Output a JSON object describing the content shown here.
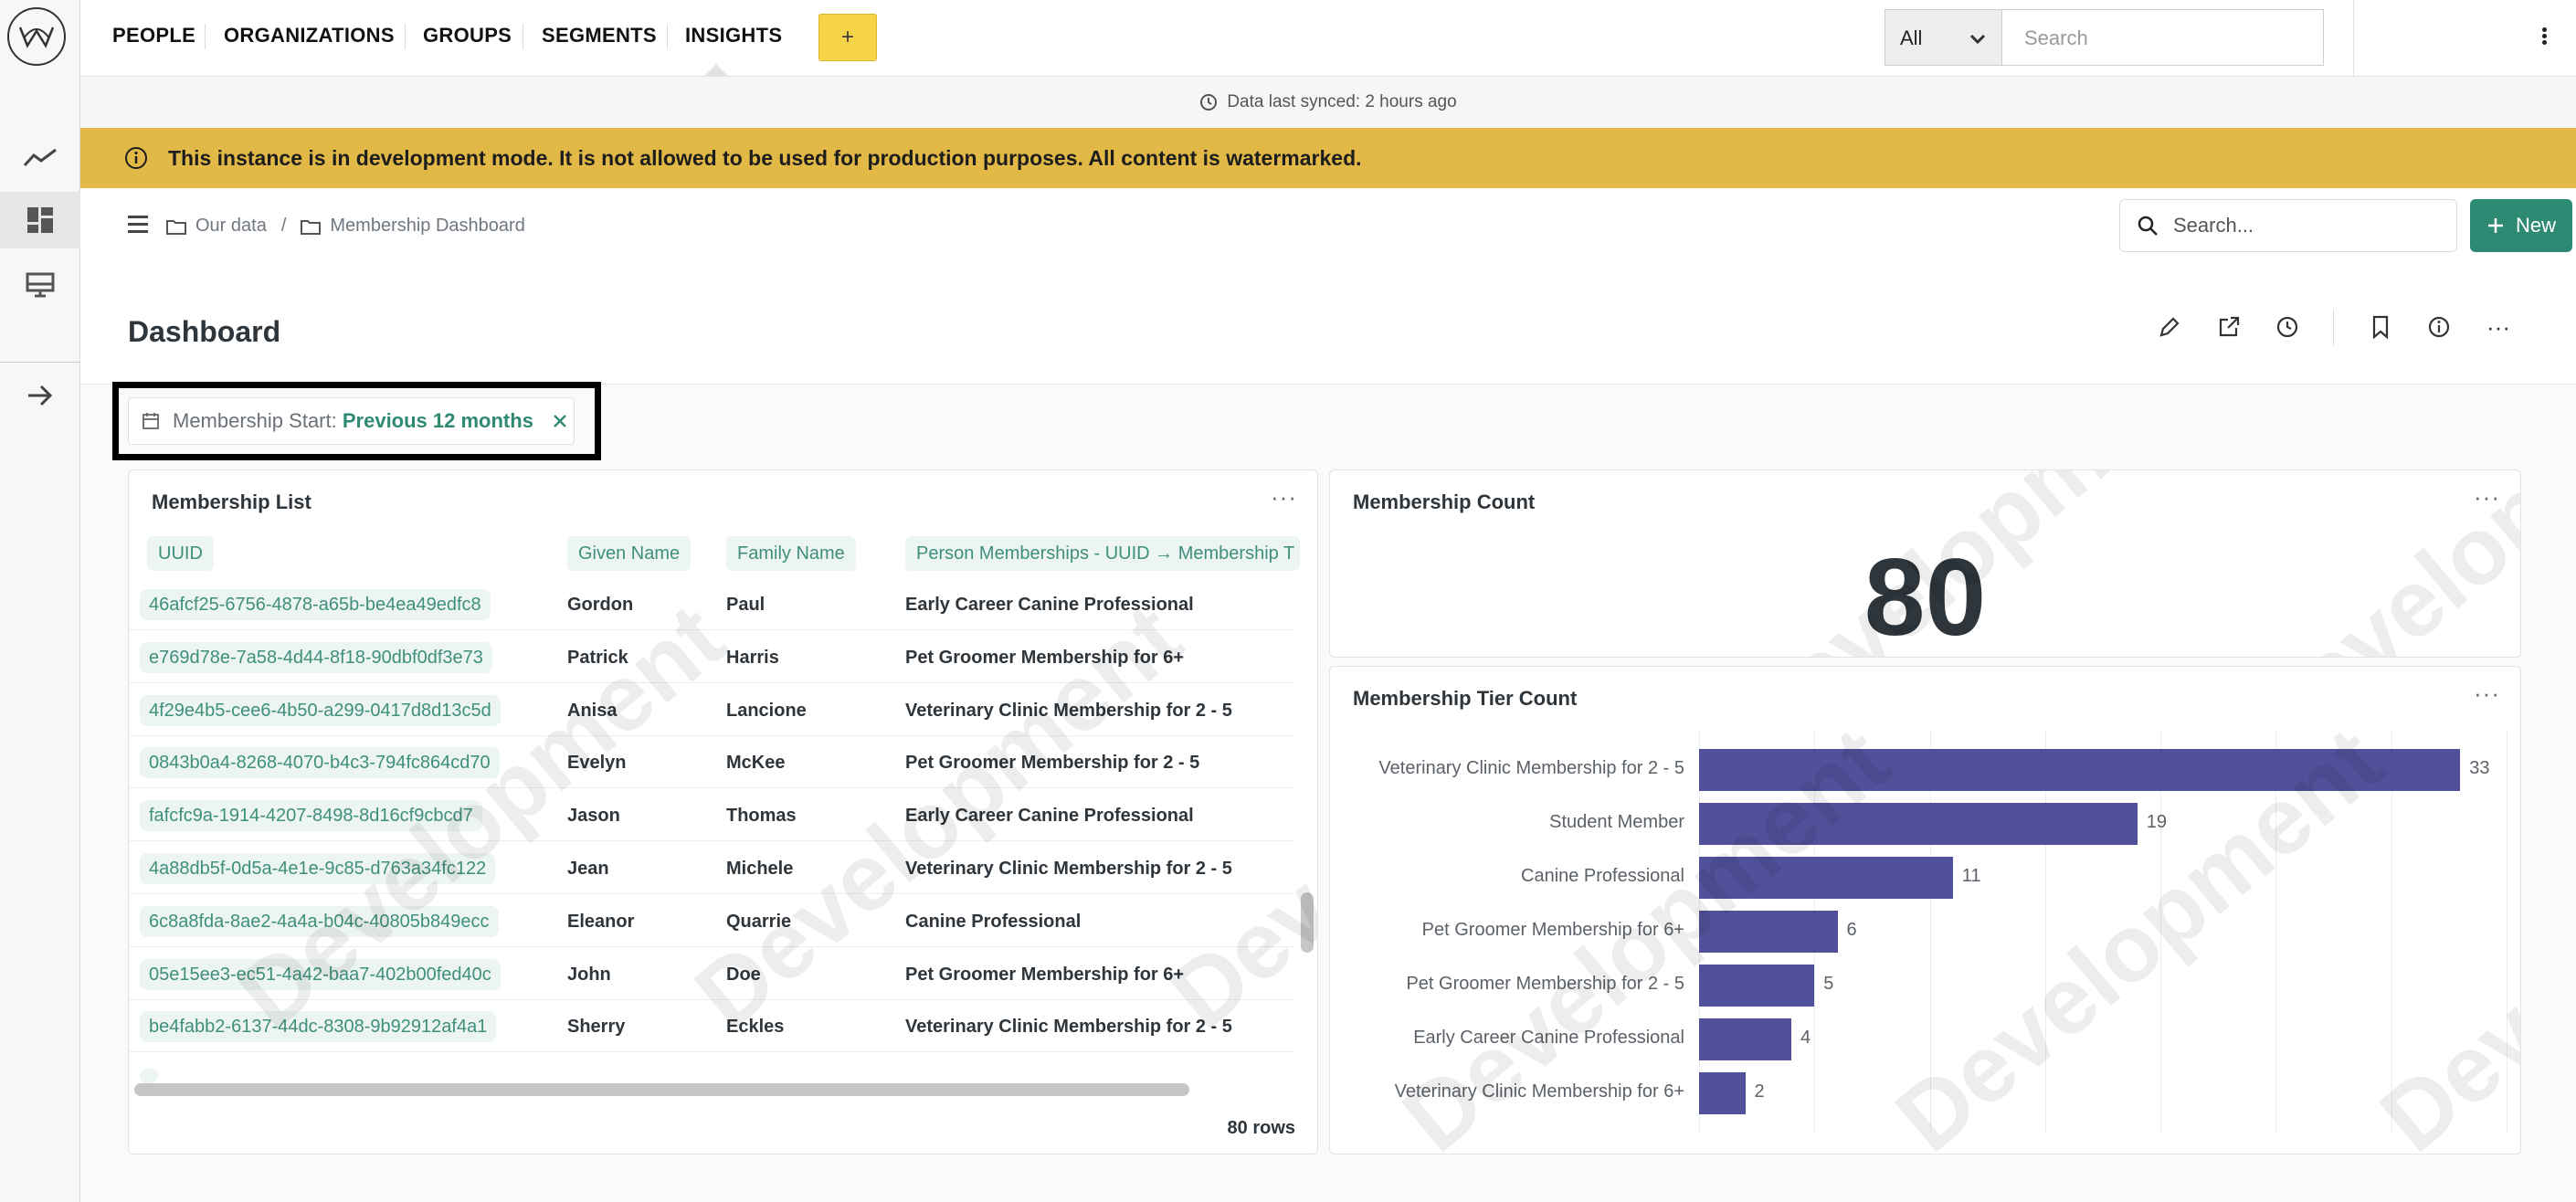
{
  "nav": {
    "items": [
      "PEOPLE",
      "ORGANIZATIONS",
      "GROUPS",
      "SEGMENTS",
      "INSIGHTS"
    ],
    "add_label": "+",
    "scope_value": "All",
    "search_placeholder": "Search"
  },
  "sync": {
    "text": "Data last synced: 2 hours ago"
  },
  "banner": {
    "text": "This instance is in development mode. It is not allowed to be used for production purposes. All content is watermarked.",
    "color": "#e2b947"
  },
  "breadcrumb": {
    "root": "Our data",
    "separator": "/",
    "current": "Membership Dashboard"
  },
  "toolbar": {
    "search_placeholder": "Search...",
    "new_label": "New"
  },
  "page": {
    "title": "Dashboard"
  },
  "filter": {
    "label": "Membership Start:",
    "value": "Previous 12 months"
  },
  "membership_list": {
    "title": "Membership List",
    "columns": [
      "UUID",
      "Given Name",
      "Family Name",
      "Person Memberships - UUID → Membership T"
    ],
    "rows": [
      [
        "46afcf25-6756-4878-a65b-be4ea49edfc8",
        "Gordon",
        "Paul",
        "Early Career Canine Professional"
      ],
      [
        "e769d78e-7a58-4d44-8f18-90dbf0df3e73",
        "Patrick",
        "Harris",
        "Pet Groomer Membership for 6+"
      ],
      [
        "4f29e4b5-cee6-4b50-a299-0417d8d13c5d",
        "Anisa",
        "Lancione",
        "Veterinary Clinic Membership for 2 - 5"
      ],
      [
        "0843b0a4-8268-4070-b4c3-794fc864cd70",
        "Evelyn",
        "McKee",
        "Pet Groomer Membership for 2 - 5"
      ],
      [
        "fafcfc9a-1914-4207-8498-8d16cf9cbcd7",
        "Jason",
        "Thomas",
        "Early Career Canine Professional"
      ],
      [
        "4a88db5f-0d5a-4e1e-9c85-d763a34fc122",
        "Jean",
        "Michele",
        "Veterinary Clinic Membership for 2 - 5"
      ],
      [
        "6c8a8fda-8ae2-4a4a-b04c-40805b849ecc",
        "Eleanor",
        "Quarrie",
        "Canine Professional"
      ],
      [
        "05e15ee3-ec51-4a42-baa7-402b00fed40c",
        "John",
        "Doe",
        "Pet Groomer Membership for 6+"
      ],
      [
        "be4fabb2-6137-44dc-8308-9b92912af4a1",
        "Sherry",
        "Eckles",
        "Veterinary Clinic Membership for 2 - 5"
      ]
    ],
    "row_count": "80 rows"
  },
  "membership_count": {
    "title": "Membership Count",
    "value": "80"
  },
  "tier_count": {
    "title": "Membership Tier Count"
  },
  "watermark": {
    "text": "Development"
  },
  "chart_data": {
    "type": "bar",
    "orientation": "horizontal",
    "title": "Membership Tier Count",
    "categories": [
      "Veterinary Clinic Membership for 2 - 5",
      "Student Member",
      "Canine Professional",
      "Pet Groomer Membership for 6+",
      "Pet Groomer Membership for 2 - 5",
      "Early Career Canine Professional",
      "Veterinary Clinic Membership for 6+"
    ],
    "values": [
      33,
      19,
      11,
      6,
      5,
      4,
      2
    ],
    "xlim": [
      0,
      40
    ],
    "bar_color": "#50519a",
    "grid": true
  },
  "colors": {
    "accent": "#2f8a73",
    "teal_text": "#3e8f7b",
    "nav_add": "#f5d547"
  }
}
